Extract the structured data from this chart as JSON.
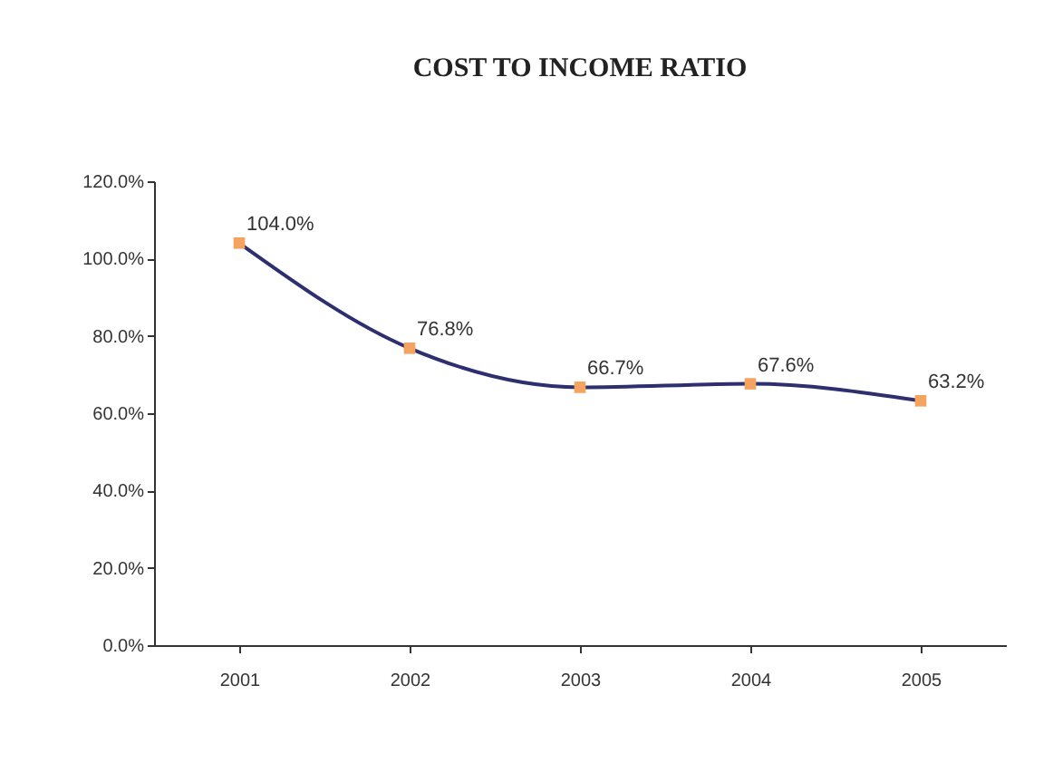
{
  "chart_data": {
    "type": "line",
    "title": "COST TO INCOME RATIO",
    "categories": [
      "2001",
      "2002",
      "2003",
      "2004",
      "2005"
    ],
    "series": [
      {
        "color": "#2e2f6e",
        "values": [
          104.0,
          76.8,
          66.7,
          67.6,
          63.2
        ],
        "value_labels": [
          "104.0%",
          "76.8%",
          "66.7%",
          "67.6%",
          "63.2%"
        ],
        "marker": "none"
      },
      {
        "type": "scatter",
        "color": "#f4a460",
        "values": [
          104.0,
          76.8,
          66.7,
          67.6,
          63.2
        ],
        "marker": "square"
      }
    ],
    "ylim": [
      0,
      120
    ],
    "yticks": [
      {
        "value": 0,
        "label": "0.0%"
      },
      {
        "value": 20,
        "label": "20.0%"
      },
      {
        "value": 40,
        "label": "40.0%"
      },
      {
        "value": 60,
        "label": "60.0%"
      },
      {
        "value": 80,
        "label": "80.0%"
      },
      {
        "value": 100,
        "label": "100.0%"
      },
      {
        "value": 120,
        "label": "120.0%"
      }
    ],
    "line_style": "solid"
  }
}
